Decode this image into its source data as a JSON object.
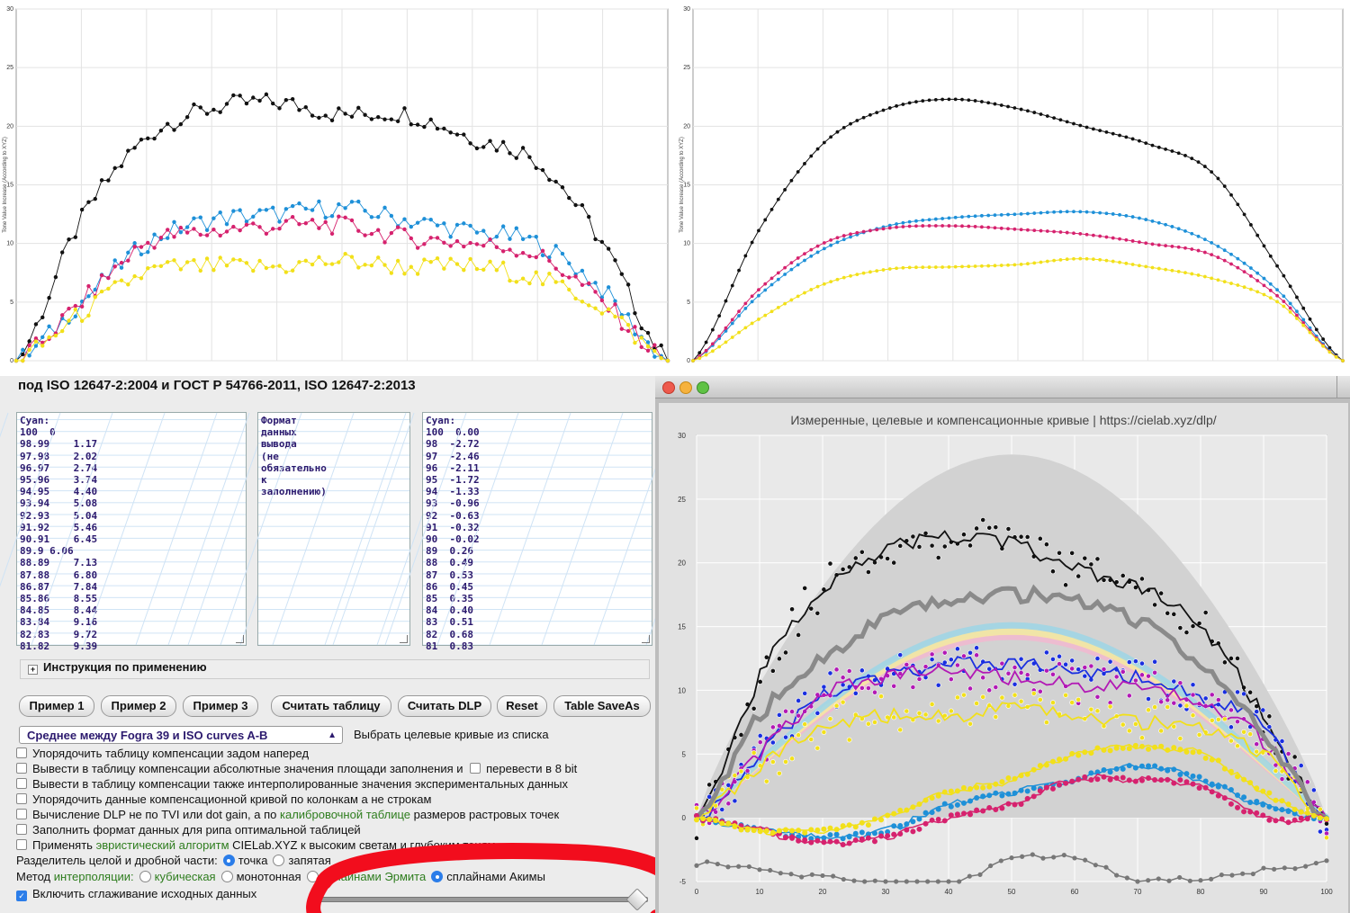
{
  "heading": "под ISO 12647-2:2004 и ГОСТ Р 54766-2011, ISO 12647-2:2013",
  "top_left_chart": {
    "ylabel": "Tone Value Increase (According to XYZ)",
    "y_ticks": [
      "0",
      "5",
      "10",
      "15",
      "20",
      "25",
      "30"
    ]
  },
  "top_right_chart": {
    "ylabel": "Tone Value Increase (According to XYZ)",
    "y_ticks": [
      "0",
      "5",
      "10",
      "15",
      "20",
      "25",
      "30"
    ]
  },
  "textarea_left": "Cyan:\n100  0\n98.99    1.17\n97.98    2.02\n96.97    2.74\n95.96    3.74\n94.95    4.40\n93.94    5.08\n92.93    5.04\n91.92    5.46\n90.91    6.45\n89.9 6.06\n88.89    7.13\n87.88    6.80\n86.87    7.84\n85.86    8.55\n84.85    8.44\n83.84    9.16\n82.83    9.72\n81.82    9.39",
  "textarea_middle": "Формат\nданных\nвывода\n(не\nобязательно\nк\nзаполнению)",
  "textarea_right": "Cyan:\n100  0.00\n98  -2.72\n97  -2.46\n96  -2.11\n95  -1.72\n94  -1.33\n93  -0.96\n92  -0.63\n91  -0.32\n90  -0.02\n89  0.26\n88  0.49\n87  0.53\n86  0.45\n85  0.35\n84  0.40\n83  0.51\n82  0.68\n81  0.83",
  "instructions_label": "Инструкция по применению",
  "buttons": [
    "Пример 1",
    "Пример 2",
    "Пример 3",
    "Считать таблицу",
    "Считать DLP",
    "Reset",
    "Table SaveAs"
  ],
  "target_select": {
    "value": "Среднее между Fogra 39 и ISO curves A-B",
    "label": "Выбрать целевые кривые из списка"
  },
  "options": {
    "o1": "Упорядочить таблицу компенсации задом наперед",
    "o2a": "Вывести в таблицу компенсации абсолютные значения площади заполнения и",
    "o2b": "перевести в 8 bit",
    "o3": "Вывести в таблицу компенсации также интерполированные значения экспериментальных данных",
    "o4": "Упорядочить данные компенсационной кривой по колонкам а не строкам",
    "o5a": "Вычисление DLP не по TVI или dot gain, а по",
    "o5b": "калибровочной таблице",
    "o5c": "размеров растровых точек",
    "o6": "Заполнить формат данных для рипа оптимальной таблицей",
    "o7a": "Применять",
    "o7b": "эвристический алгоритм",
    "o7c": "CIELab.XYZ к высоким светам и глубоким теням",
    "sep_label": "Разделитель целой и дробной части:",
    "sep_point": "точка",
    "sep_comma": "запятая",
    "interp_label_a": "Метод",
    "interp_label_b": "интерполяции:",
    "interp_cubic": "кубическая",
    "interp_mono": "монотонная",
    "interp_hermite": "сплайнами Эрмита",
    "interp_akima": "сплайнами Акимы",
    "smooth": "Включить сглаживание исходных данных"
  },
  "slider": {
    "value": 0.97
  },
  "big_chart": {
    "title": "Измеренные, целевые и компенсационные кривые | https://cielab.xyz/dlp/",
    "y_ticks": [
      "30",
      "25",
      "20",
      "15",
      "10",
      "5",
      "0",
      "-5"
    ],
    "x_ticks": [
      "0",
      "10",
      "20",
      "30",
      "40",
      "50",
      "60",
      "70",
      "80",
      "90",
      "100"
    ]
  },
  "colors": {
    "cyan": "#1e90d8",
    "magenta": "#d6226e",
    "yellow": "#f2e01a",
    "black": "#111111"
  },
  "chart_data": [
    {
      "type": "line",
      "xlim": [
        0,
        100
      ],
      "ylim": [
        0,
        30
      ],
      "ylabel": "Tone Value Increase (According to XYZ)",
      "x": [
        0,
        10,
        20,
        30,
        40,
        50,
        60,
        70,
        80,
        90,
        100
      ],
      "series": [
        {
          "color": "black",
          "values": [
            0,
            12,
            19,
            21.5,
            22,
            21,
            21,
            19,
            17,
            10,
            0
          ]
        },
        {
          "color": "cyan",
          "values": [
            0,
            5,
            10,
            12,
            12.5,
            13,
            12,
            11,
            10,
            6,
            0
          ]
        },
        {
          "color": "magenta",
          "values": [
            0,
            5,
            10,
            11,
            11.5,
            11.5,
            10.5,
            10,
            9,
            5,
            0
          ]
        },
        {
          "color": "yellow",
          "values": [
            0,
            4,
            7.5,
            8,
            8,
            8.5,
            8,
            8,
            7,
            4.5,
            0
          ]
        }
      ]
    },
    {
      "type": "line",
      "xlim": [
        0,
        100
      ],
      "ylim": [
        0,
        30
      ],
      "ylabel": "Tone Value Increase (According to XYZ)",
      "x": [
        0,
        10,
        20,
        30,
        40,
        50,
        60,
        70,
        80,
        90,
        100
      ],
      "series": [
        {
          "color": "black",
          "values": [
            0,
            11,
            18.5,
            21.5,
            22.3,
            21.5,
            20,
            18.5,
            16,
            8,
            0
          ]
        },
        {
          "color": "cyan",
          "values": [
            0,
            5.5,
            9.5,
            11.5,
            12.2,
            12.5,
            12.7,
            12,
            10,
            6,
            0
          ]
        },
        {
          "color": "magenta",
          "values": [
            0,
            6,
            10,
            11.3,
            11.5,
            11.2,
            10.8,
            10,
            9,
            5.5,
            0
          ]
        },
        {
          "color": "yellow",
          "values": [
            0,
            3.5,
            6.5,
            7.8,
            8,
            8.2,
            8.7,
            8,
            7,
            5,
            0
          ]
        }
      ]
    },
    {
      "type": "line",
      "title": "Измеренные, целевые и компенсационные кривые | https://cielab.xyz/dlp/",
      "xlim": [
        0,
        100
      ],
      "ylim": [
        -5,
        30
      ],
      "x": [
        0,
        10,
        20,
        30,
        40,
        50,
        60,
        70,
        80,
        90,
        100
      ],
      "series": [
        {
          "color": "black",
          "values": [
            0,
            11,
            18,
            21,
            22,
            21.5,
            19.5,
            18,
            15,
            8,
            0
          ]
        },
        {
          "color": "blue",
          "values": [
            0,
            5,
            9.5,
            11,
            12,
            12,
            11.5,
            11,
            9.5,
            7,
            0
          ]
        },
        {
          "color": "purple",
          "values": [
            0,
            5,
            9.5,
            11,
            11.5,
            11,
            10.5,
            10,
            9,
            6,
            0
          ]
        },
        {
          "color": "yellow",
          "values": [
            0,
            4,
            7,
            8,
            8,
            8.5,
            8,
            7.5,
            7,
            5,
            0
          ]
        },
        {
          "color": "gray",
          "values": [
            0,
            8,
            12.5,
            15.5,
            17,
            17.5,
            17,
            15.5,
            12,
            6.5,
            0
          ]
        },
        {
          "color": "cyan",
          "values": [
            0,
            -1,
            -1.5,
            -1,
            1,
            2,
            3,
            4,
            3,
            1,
            0
          ]
        },
        {
          "color": "magenta",
          "values": [
            0,
            -1,
            -2,
            -1.5,
            0,
            1,
            3,
            3,
            2.5,
            0,
            0
          ]
        },
        {
          "color": "yellow",
          "values": [
            0,
            -1,
            -1,
            0,
            2,
            3,
            5,
            5.5,
            5,
            2,
            0
          ]
        }
      ]
    }
  ]
}
